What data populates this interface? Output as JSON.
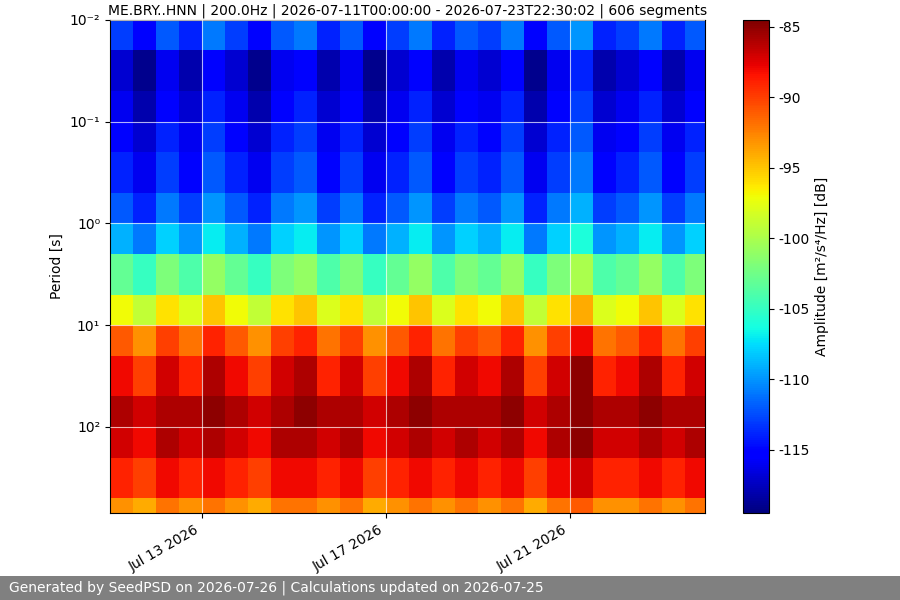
{
  "chart_data": {
    "type": "heatmap",
    "title": "ME.BRY..HNN | 200.0Hz | 2026-07-11T00:00:00 - 2026-07-23T22:30:02 | 606 segments",
    "y_label": "Period [s]",
    "colorbar_label": "Amplitude [m²/s⁴/Hz] [dB]",
    "footer": "Generated by SeedPSD on 2026-07-26 | Calculations updated on 2026-07-25",
    "x_edges": [
      "2026-07-11T00:00",
      "2026-07-11T12:00",
      "2026-07-12T00:00",
      "2026-07-12T12:00",
      "2026-07-13T00:00",
      "2026-07-13T12:00",
      "2026-07-14T00:00",
      "2026-07-14T12:00",
      "2026-07-15T00:00",
      "2026-07-15T12:00",
      "2026-07-16T00:00",
      "2026-07-16T12:00",
      "2026-07-17T00:00",
      "2026-07-17T12:00",
      "2026-07-18T00:00",
      "2026-07-18T12:00",
      "2026-07-19T00:00",
      "2026-07-19T12:00",
      "2026-07-20T00:00",
      "2026-07-20T12:00",
      "2026-07-21T00:00",
      "2026-07-21T12:00",
      "2026-07-22T00:00",
      "2026-07-22T12:00",
      "2026-07-23T00:00",
      "2026-07-23T12:00",
      "2026-07-23T22:30"
    ],
    "y_edges": [
      0.01,
      0.02,
      0.05,
      0.1,
      0.2,
      0.5,
      1,
      2,
      5,
      10,
      20,
      50,
      100,
      200,
      500,
      700
    ],
    "cells": [
      [
        -113,
        -115,
        -112,
        -114,
        -111,
        -113,
        -115,
        -112,
        -111,
        -114,
        -112,
        -115,
        -113,
        -111,
        -114,
        -112,
        -113,
        -111,
        -115,
        -112,
        -110,
        -114,
        -113,
        -111,
        -114,
        -112
      ],
      [
        -117,
        -119,
        -116,
        -118,
        -115,
        -117,
        -119,
        -116,
        -115,
        -118,
        -116,
        -119,
        -117,
        -115,
        -118,
        -116,
        -117,
        -115,
        -119,
        -116,
        -114,
        -118,
        -117,
        -115,
        -118,
        -116
      ],
      [
        -116,
        -118,
        -115,
        -117,
        -114,
        -116,
        -118,
        -115,
        -114,
        -117,
        -115,
        -118,
        -116,
        -114,
        -117,
        -115,
        -116,
        -114,
        -118,
        -115,
        -113,
        -117,
        -116,
        -114,
        -117,
        -115
      ],
      [
        -115,
        -117,
        -114,
        -116,
        -113,
        -115,
        -117,
        -114,
        -113,
        -116,
        -114,
        -117,
        -115,
        -113,
        -116,
        -114,
        -115,
        -113,
        -117,
        -114,
        -112,
        -116,
        -115,
        -113,
        -116,
        -114
      ],
      [
        -114,
        -116,
        -113,
        -115,
        -112,
        -114,
        -116,
        -113,
        -112,
        -115,
        -113,
        -116,
        -114,
        -112,
        -115,
        -113,
        -114,
        -112,
        -116,
        -113,
        -111,
        -115,
        -114,
        -112,
        -115,
        -113
      ],
      [
        -112,
        -114,
        -111,
        -113,
        -110,
        -112,
        -114,
        -111,
        -110,
        -113,
        -111,
        -114,
        -112,
        -110,
        -113,
        -111,
        -112,
        -110,
        -114,
        -111,
        -109,
        -113,
        -112,
        -110,
        -113,
        -111
      ],
      [
        -109,
        -111,
        -108,
        -110,
        -107,
        -109,
        -111,
        -108,
        -107,
        -110,
        -108,
        -111,
        -109,
        -107,
        -110,
        -108,
        -109,
        -107,
        -111,
        -108,
        -106,
        -110,
        -109,
        -107,
        -110,
        -108
      ],
      [
        -103,
        -105,
        -102,
        -104,
        -101,
        -103,
        -105,
        -102,
        -101,
        -104,
        -102,
        -105,
        -103,
        -101,
        -104,
        -102,
        -103,
        -101,
        -105,
        -102,
        -100,
        -104,
        -103,
        -101,
        -104,
        -102
      ],
      [
        -97,
        -99,
        -96,
        -98,
        -95,
        -97,
        -99,
        -96,
        -95,
        -98,
        -96,
        -99,
        -97,
        -95,
        -98,
        -96,
        -97,
        -95,
        -99,
        -96,
        -94,
        -98,
        -97,
        -95,
        -98,
        -96
      ],
      [
        -91,
        -93,
        -90,
        -92,
        -89,
        -91,
        -93,
        -90,
        -89,
        -92,
        -90,
        -93,
        -91,
        -89,
        -92,
        -90,
        -91,
        -89,
        -93,
        -90,
        -88,
        -92,
        -91,
        -89,
        -92,
        -90
      ],
      [
        -88,
        -90,
        -87,
        -89,
        -86,
        -88,
        -90,
        -87,
        -86,
        -89,
        -87,
        -90,
        -88,
        -86,
        -89,
        -87,
        -88,
        -86,
        -90,
        -87,
        -85,
        -89,
        -88,
        -86,
        -89,
        -87
      ],
      [
        -86,
        -87,
        -86,
        -86,
        -85,
        -86,
        -87,
        -86,
        -85,
        -86,
        -86,
        -87,
        -86,
        -85,
        -86,
        -86,
        -86,
        -85,
        -87,
        -86,
        -85,
        -86,
        -86,
        -85,
        -86,
        -86
      ],
      [
        -87,
        -88,
        -86,
        -87,
        -86,
        -87,
        -88,
        -86,
        -86,
        -87,
        -86,
        -88,
        -87,
        -86,
        -87,
        -86,
        -87,
        -86,
        -88,
        -86,
        -85,
        -87,
        -87,
        -86,
        -87,
        -86
      ],
      [
        -89,
        -90,
        -88,
        -89,
        -88,
        -89,
        -90,
        -88,
        -88,
        -89,
        -88,
        -90,
        -89,
        -88,
        -89,
        -88,
        -89,
        -88,
        -90,
        -88,
        -87,
        -89,
        -89,
        -88,
        -89,
        -88
      ],
      [
        -93,
        -94,
        -92,
        -93,
        -92,
        -93,
        -94,
        -92,
        -92,
        -93,
        -92,
        -94,
        -93,
        -92,
        -93,
        -92,
        -93,
        -92,
        -94,
        -92,
        -91,
        -93,
        -93,
        -92,
        -93,
        -92
      ]
    ],
    "xlim": [
      "2026-07-11T00:00",
      "2026-07-23T22:30"
    ],
    "xticks": [
      {
        "value": "2026-07-13T00:00",
        "label": "Jul 13 2026"
      },
      {
        "value": "2026-07-17T00:00",
        "label": "Jul 17 2026"
      },
      {
        "value": "2026-07-21T00:00",
        "label": "Jul 21 2026"
      }
    ],
    "ylim": [
      700,
      0.01
    ],
    "yticks": [
      {
        "value": 0.01,
        "label": "10⁻²"
      },
      {
        "value": 0.1,
        "label": "10⁻¹"
      },
      {
        "value": 1,
        "label": "10⁰"
      },
      {
        "value": 10,
        "label": "10¹"
      },
      {
        "value": 100,
        "label": "10²"
      }
    ],
    "log": "y",
    "grid": true,
    "colorbar_range": [
      -119.5,
      -84.5
    ],
    "colorbar_ticks": [
      -115,
      -110,
      -105,
      -100,
      -95,
      -90,
      -85
    ]
  }
}
